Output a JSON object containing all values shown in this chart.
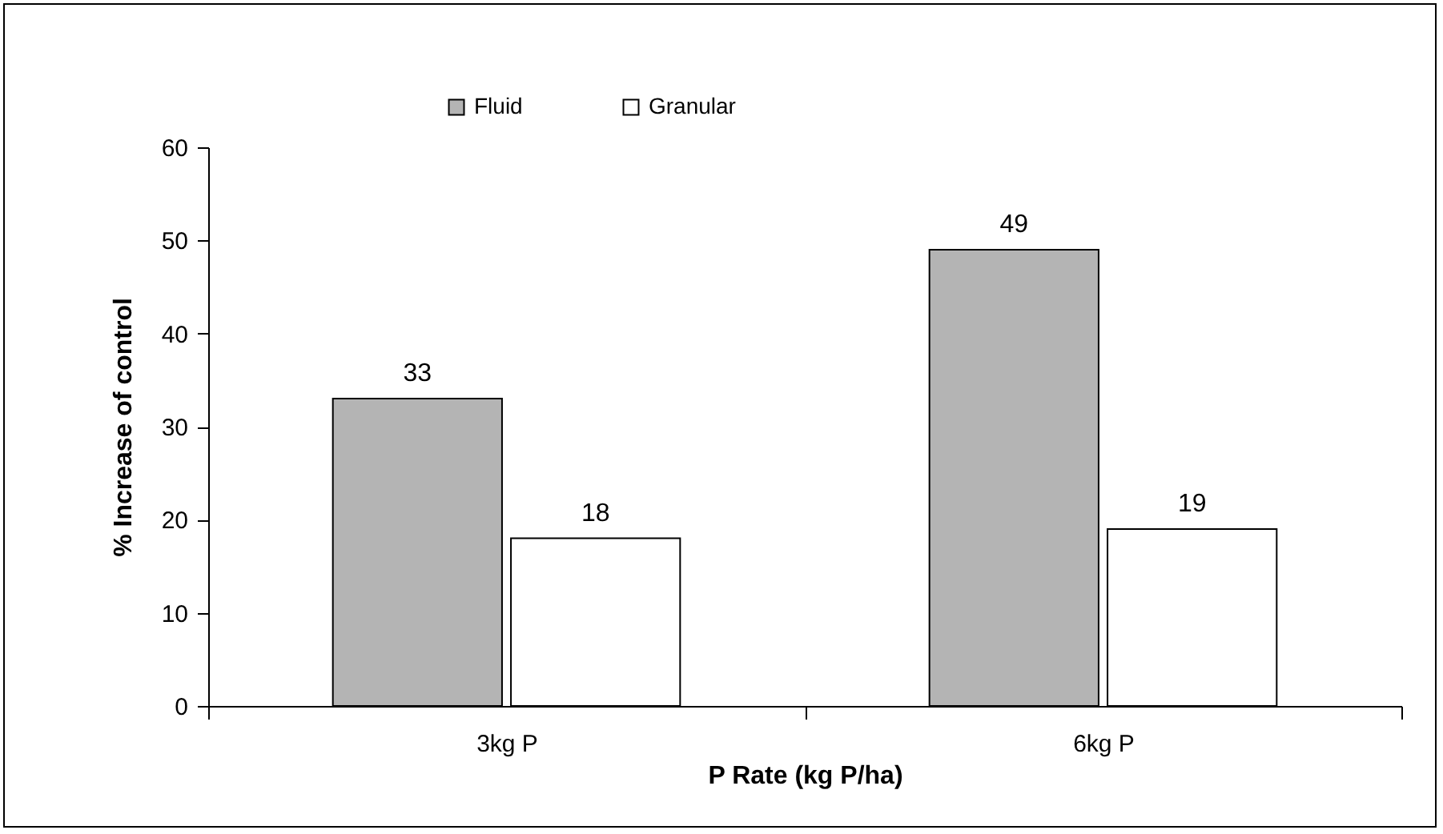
{
  "chart_data": {
    "type": "bar",
    "xlabel": "P Rate (kg P/ha)",
    "ylabel": "% Increase of control",
    "categories": [
      "3kg P",
      "6kg P"
    ],
    "series": [
      {
        "name": "Fluid",
        "color": "#b4b4b4",
        "values": [
          33,
          49
        ]
      },
      {
        "name": "Granular",
        "color": "#ffffff",
        "values": [
          18,
          19
        ]
      }
    ],
    "ylim": [
      0,
      60
    ],
    "yticks": [
      0,
      10,
      20,
      30,
      40,
      50,
      60
    ],
    "grid": false,
    "legend": "top",
    "data_labels": true
  }
}
